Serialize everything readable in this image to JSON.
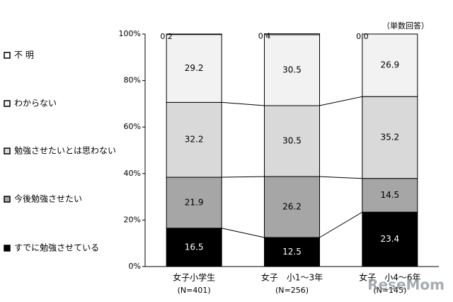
{
  "chart_data": {
    "type": "stacked_bar",
    "annotation": "（単数回答）",
    "categories": [
      "女子小学生",
      "女子　小1～3年",
      "女子　小4～6年"
    ],
    "category_notes": [
      "(N=401)",
      "(N=256)",
      "(N=145)"
    ],
    "series": [
      {
        "name": "すでに勉強させている",
        "color": "#000000",
        "values": [
          16.5,
          12.5,
          23.4
        ]
      },
      {
        "name": "今後勉強させたい",
        "color": "#a6a6a6",
        "values": [
          21.9,
          26.2,
          14.5
        ]
      },
      {
        "name": "勉強させたいとは思わない",
        "color": "#d9d9d9",
        "values": [
          32.2,
          30.5,
          35.2
        ]
      },
      {
        "name": "わからない",
        "color": "#f2f2f2",
        "values": [
          29.2,
          30.5,
          26.9
        ]
      },
      {
        "name": "不 明",
        "color": "#ffffff",
        "values": [
          0.2,
          0.4,
          0.0
        ],
        "value_labels": [
          "0.2",
          "0.4",
          "0.0"
        ]
      }
    ],
    "ylim": [
      0,
      100
    ],
    "yticks": [
      {
        "value": 0,
        "label": "0%"
      },
      {
        "value": 20,
        "label": "20%"
      },
      {
        "value": 40,
        "label": "40%"
      },
      {
        "value": 60,
        "label": "60%"
      },
      {
        "value": 80,
        "label": "80%"
      },
      {
        "value": 100,
        "label": "100%"
      }
    ],
    "watermark": "ReseMom"
  }
}
